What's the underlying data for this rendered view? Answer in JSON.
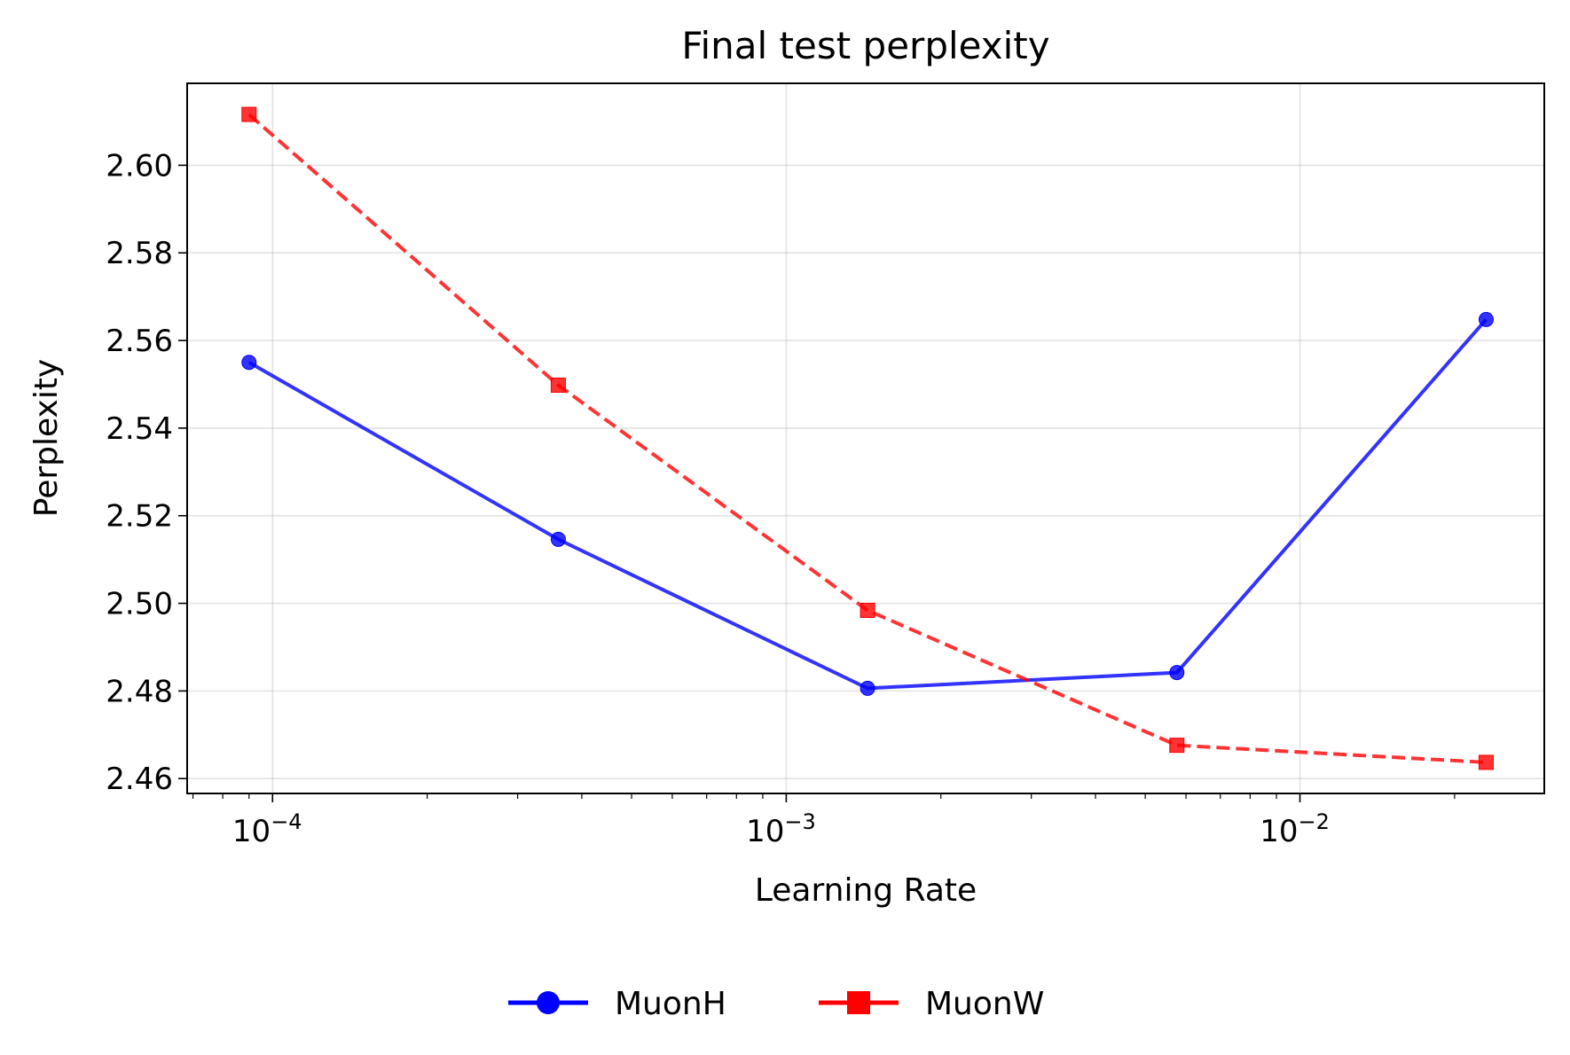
{
  "chart_data": {
    "type": "line",
    "title": "Final test perplexity",
    "xlabel": "Learning Rate",
    "ylabel": "Perplexity",
    "xscale": "log",
    "xlim": [
      6.82e-05,
      0.0299
    ],
    "ylim": [
      2.4566,
      2.6187
    ],
    "grid": true,
    "legend_placement": "bottom-center",
    "x_ticks": [
      0.0001,
      0.001,
      0.01
    ],
    "x_tick_labels": [
      [
        "10",
        "−4"
      ],
      [
        "10",
        "−3"
      ],
      [
        "10",
        "−2"
      ]
    ],
    "y_ticks": [
      2.46,
      2.48,
      2.5,
      2.52,
      2.54,
      2.56,
      2.58,
      2.6
    ],
    "y_tick_labels": [
      "2.46",
      "2.48",
      "2.50",
      "2.52",
      "2.54",
      "2.56",
      "2.58",
      "2.60"
    ],
    "x": [
      9e-05,
      0.00036,
      0.00144,
      0.00576,
      0.02304
    ],
    "series": [
      {
        "name": "MuonH",
        "values": [
          2.555,
          2.5146,
          2.4806,
          2.4842,
          2.5648
        ],
        "color": "#0000ff",
        "marker": "circle",
        "linestyle": "solid"
      },
      {
        "name": "MuonW",
        "values": [
          2.6116,
          2.5498,
          2.4984,
          2.4676,
          2.4637
        ],
        "color": "#ff0000",
        "marker": "square",
        "linestyle": "dashed"
      }
    ]
  }
}
